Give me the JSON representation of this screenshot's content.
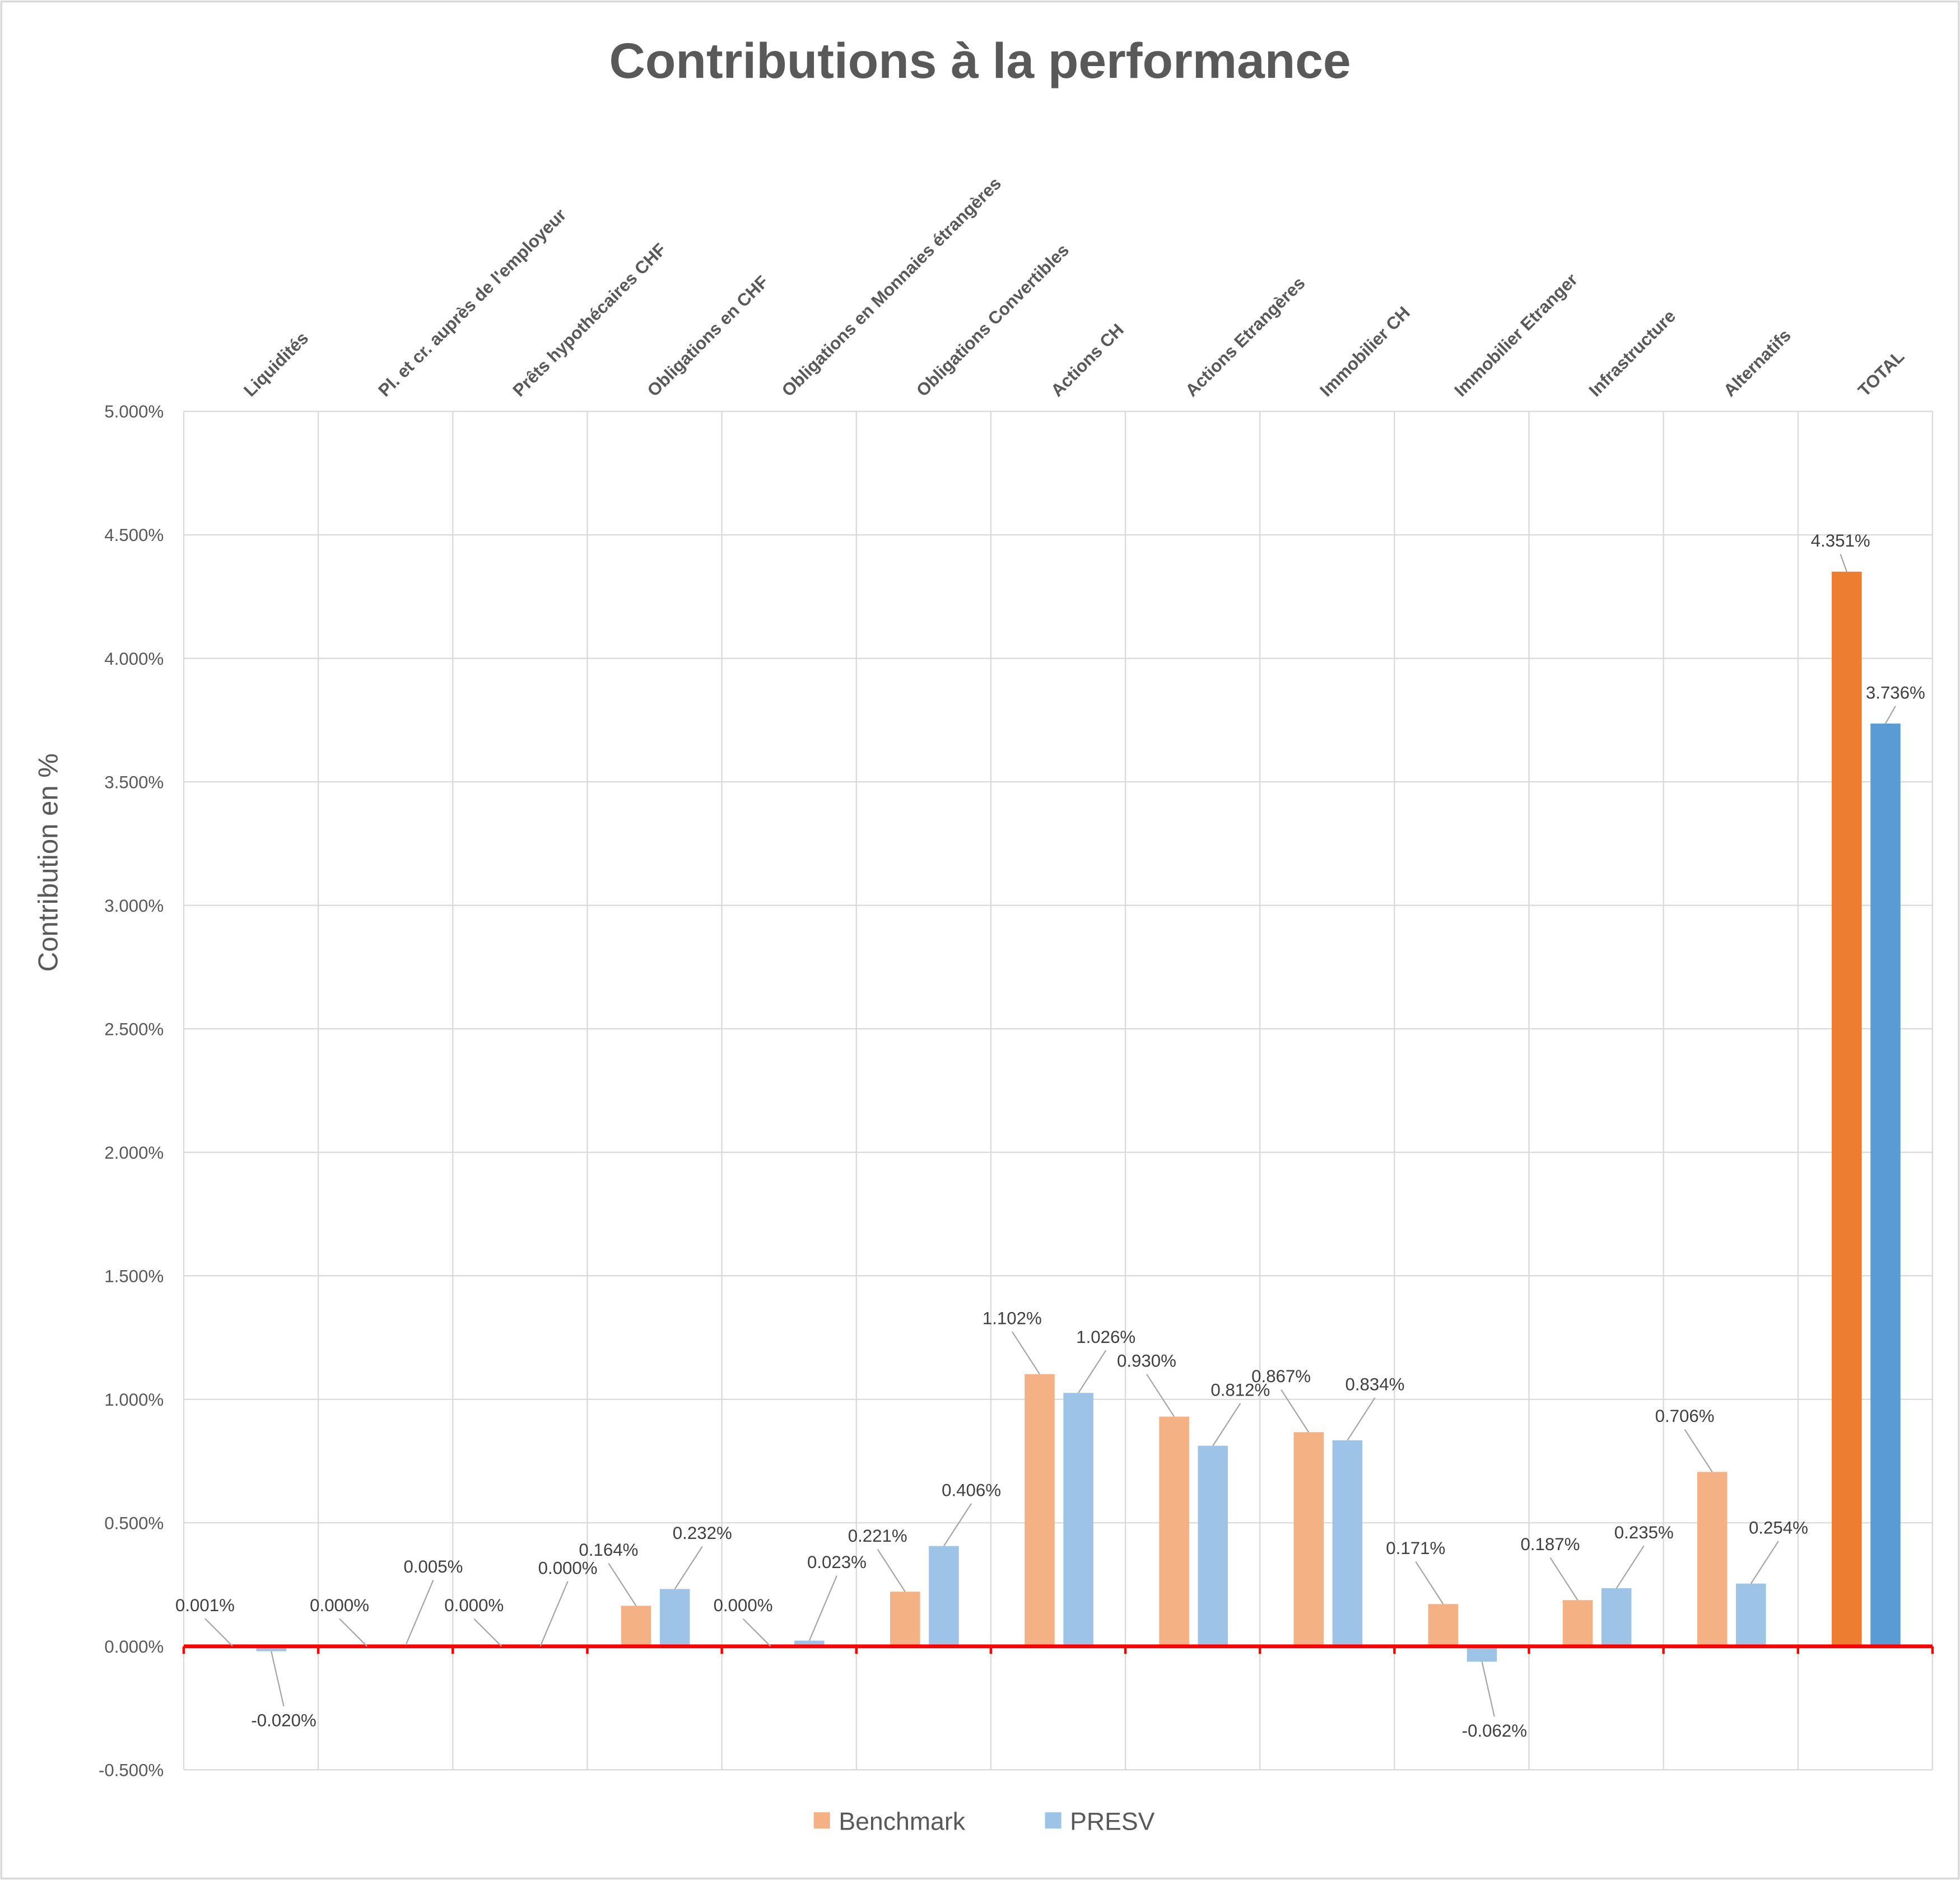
{
  "chart_data": {
    "type": "bar",
    "title": "Contributions à la performance",
    "xlabel": "",
    "ylabel": "Contribution en %",
    "ylim": [
      -0.5,
      5.0
    ],
    "ytick_step": 0.5,
    "yticks": [
      "-0.500%",
      "0.000%",
      "0.500%",
      "1.000%",
      "1.500%",
      "2.000%",
      "2.500%",
      "3.000%",
      "3.500%",
      "4.000%",
      "4.500%",
      "5.000%"
    ],
    "grid": true,
    "legend_position": "bottom",
    "categories": [
      "Liquidités",
      "Pl. et cr. auprès de l'employeur",
      "Prêts hypothécaires CHF",
      "Obligations en CHF",
      "Obligations en Monnaies étrangères",
      "Obligations Convertibles",
      "Actions CH",
      "Actions Etrangères",
      "Immobilier CH",
      "Immobilier Etranger",
      "Infrastructure",
      "Alternatifs",
      "TOTAL"
    ],
    "series": [
      {
        "name": "Benchmark",
        "color": "#F4B183",
        "total_color": "#ED7D31",
        "values": [
          0.001,
          0.0,
          0.0,
          0.164,
          0.0,
          0.221,
          1.102,
          0.93,
          0.867,
          0.171,
          0.187,
          0.706,
          4.351
        ],
        "labels": [
          "0.001%",
          "0.000%",
          "0.000%",
          "0.164%",
          "0.000%",
          "0.221%",
          "1.102%",
          "0.930%",
          "0.867%",
          "0.171%",
          "0.187%",
          "0.706%",
          "4.351%"
        ]
      },
      {
        "name": "PRESV",
        "color": "#9DC3E6",
        "total_color": "#5B9BD5",
        "values": [
          -0.02,
          0.005,
          0.0,
          0.232,
          0.023,
          0.406,
          1.026,
          0.812,
          0.834,
          -0.062,
          0.235,
          0.254,
          3.736
        ],
        "labels": [
          "-0.020%",
          "0.005%",
          "0.000%",
          "0.232%",
          "0.023%",
          "0.406%",
          "1.026%",
          "0.812%",
          "0.834%",
          "-0.062%",
          "0.235%",
          "0.254%",
          "3.736%"
        ]
      }
    ],
    "zero_line_color": "#FF0000"
  }
}
